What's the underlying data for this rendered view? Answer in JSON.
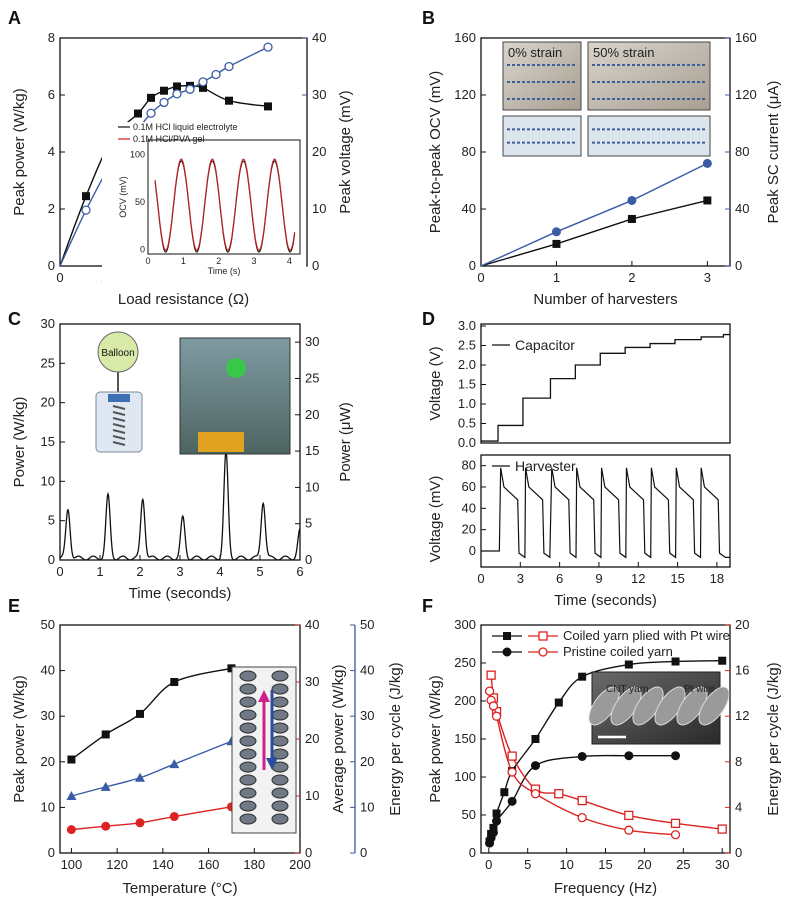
{
  "chart_data": [
    {
      "panel": "A",
      "type": "line",
      "xlabel": "Load resistance (Ω)",
      "ylabel": "Peak power (W/kg)",
      "y2label": "Peak voltage (mV)",
      "xlim": [
        0,
        950
      ],
      "ylim": [
        0,
        8
      ],
      "y2lim": [
        0,
        40
      ],
      "xticks": [
        0,
        200,
        400,
        600,
        800
      ],
      "yticks": [
        0,
        2,
        4,
        6,
        8
      ],
      "y2ticks": [
        0,
        10,
        20,
        30,
        40
      ],
      "series": [
        {
          "name": "Peak power",
          "axis": "left",
          "color": "#111111",
          "marker": "square",
          "x": [
            0,
            100,
            200,
            300,
            350,
            400,
            450,
            500,
            550,
            650,
            800
          ],
          "y": [
            0,
            2.45,
            4.45,
            5.35,
            5.9,
            6.15,
            6.3,
            6.32,
            6.25,
            5.8,
            5.6
          ]
        },
        {
          "name": "Peak voltage",
          "axis": "right",
          "color": "#3a5ba5",
          "marker": "circle-open",
          "x": [
            0,
            100,
            200,
            300,
            350,
            400,
            450,
            500,
            550,
            600,
            650,
            800
          ],
          "y": [
            0,
            9.8,
            18.2,
            24.0,
            26.8,
            28.7,
            30.2,
            31.0,
            32.3,
            33.6,
            35.0,
            38.4
          ]
        }
      ],
      "inset": {
        "xlabel": "Time (s)",
        "ylabel": "OCV (mV)",
        "xticks": [
          0,
          1,
          2,
          3,
          4
        ],
        "yticks": [
          0,
          50,
          100
        ],
        "legend": [
          "0.1M HCl liquid electrolyte",
          "0.1M HCl/PVA gel"
        ],
        "legend_colors": [
          "#111111",
          "#cc2222"
        ]
      }
    },
    {
      "panel": "B",
      "type": "line",
      "xlabel": "Number of harvesters",
      "ylabel": "Peak-to-peak OCV (mV)",
      "y2label": "Peak SC current (μA)",
      "xlim": [
        0,
        3.3
      ],
      "ylim": [
        0,
        160
      ],
      "y2lim": [
        0,
        160
      ],
      "xticks": [
        0,
        1,
        2,
        3
      ],
      "yticks": [
        0,
        40,
        80,
        120,
        160
      ],
      "y2ticks": [
        0,
        40,
        80,
        120,
        160
      ],
      "series": [
        {
          "name": "Peak-to-peak OCV",
          "axis": "left",
          "color": "#111111",
          "marker": "square",
          "x": [
            0,
            1,
            2,
            3
          ],
          "y": [
            0,
            15.5,
            33,
            46
          ]
        },
        {
          "name": "Peak SC current",
          "axis": "right",
          "color": "#3a5ba5",
          "marker": "circle",
          "x": [
            0,
            1,
            2,
            3
          ],
          "y": [
            0,
            24,
            46,
            72
          ]
        }
      ],
      "photo_labels": [
        "0% strain",
        "50% strain"
      ]
    },
    {
      "panel": "C",
      "type": "line",
      "xlabel": "Time (seconds)",
      "ylabel": "Power (W/kg)",
      "y2label": "Power (μW)",
      "xlim": [
        0,
        6
      ],
      "ylim": [
        0,
        30
      ],
      "y2lim": [
        0,
        32.5
      ],
      "xticks": [
        0,
        1,
        2,
        3,
        4,
        5,
        6
      ],
      "yticks": [
        0,
        5,
        10,
        15,
        20,
        25,
        30
      ],
      "y2ticks": [
        0,
        5,
        10,
        15,
        20,
        25,
        30
      ],
      "series": [
        {
          "name": "Power",
          "axis": "left",
          "color": "#111111",
          "peaks_t": [
            0.2,
            1.2,
            2.07,
            3.07,
            4.15,
            5.08,
            6.0
          ],
          "peaks_h": [
            6.2,
            7.9,
            7.6,
            5.1,
            13.4,
            7.2,
            3.5
          ]
        }
      ],
      "balloon_label": "Balloon"
    },
    {
      "panel": "D",
      "type": "line",
      "xlabel": "Time (seconds)",
      "top": {
        "ylabel": "Voltage (V)",
        "legend": "Capacitor",
        "ylim": [
          0,
          3.0
        ],
        "yticks": [
          0.0,
          0.5,
          1.0,
          1.5,
          2.0,
          2.5,
          3.0
        ],
        "ytick_labels": [
          "0.0",
          "0.5",
          "1.0",
          "1.5",
          "2.0",
          "2.5",
          "3.0"
        ],
        "step_t": [
          0,
          1.3,
          3.2,
          5.3,
          7.2,
          9.1,
          11.0,
          12.9,
          14.8,
          16.8,
          18.5
        ],
        "step_v": [
          0.05,
          0.45,
          1.15,
          1.65,
          2.0,
          2.3,
          2.45,
          2.55,
          2.65,
          2.72,
          2.78
        ]
      },
      "bottom": {
        "ylabel": "Voltage (mV)",
        "legend": "Harvester",
        "ylim": [
          -15,
          90
        ],
        "yticks": [
          0,
          20,
          40,
          60,
          80
        ],
        "ytick_labels": [
          "0",
          "20",
          "40",
          "60",
          "80"
        ],
        "pulse_t": [
          1.5,
          3.4,
          5.4,
          7.3,
          9.2,
          11.1,
          13.0,
          14.9,
          16.8
        ]
      },
      "xlim": [
        0,
        19
      ],
      "xticks": [
        0,
        3,
        6,
        9,
        12,
        15,
        18
      ]
    },
    {
      "panel": "E",
      "type": "line",
      "xlabel": "Temperature (°C)",
      "ylabel": "Peak power (W/kg)",
      "y2label": "Average power (W/kg)",
      "y3label": "Energy per cycle (J/kg)",
      "xlim": [
        95,
        200
      ],
      "ylim": [
        0,
        50
      ],
      "y2lim": [
        0,
        40
      ],
      "y3lim": [
        0,
        50
      ],
      "xticks": [
        100,
        120,
        140,
        160,
        180,
        200
      ],
      "yticks": [
        0,
        10,
        20,
        30,
        40,
        50
      ],
      "y2ticks": [
        0,
        10,
        20,
        30,
        40
      ],
      "y3ticks": [
        0,
        10,
        20,
        30,
        40,
        50
      ],
      "series": [
        {
          "name": "Peak power",
          "axis": "left",
          "color": "#111111",
          "marker": "square",
          "x": [
            100,
            115,
            130,
            145,
            170
          ],
          "y": [
            20.5,
            26,
            30.5,
            37.5,
            40.5
          ]
        },
        {
          "name": "Average power",
          "axis": "right",
          "color": "#dd2222",
          "marker": "circle",
          "x": [
            100,
            115,
            130,
            145,
            170
          ],
          "y": [
            4.1,
            4.7,
            5.3,
            6.4,
            8.1
          ]
        },
        {
          "name": "Energy per cycle",
          "axis": "right2",
          "color": "#3a5ba5",
          "marker": "triangle",
          "x": [
            100,
            115,
            130,
            145,
            170
          ],
          "y": [
            12.5,
            14.5,
            16.5,
            19.5,
            24.5
          ]
        }
      ]
    },
    {
      "panel": "F",
      "type": "line",
      "xlabel": "Frequency (Hz)",
      "ylabel": "Peak power (W/kg)",
      "y2label": "Energy per cycle (J/kg)",
      "xlim": [
        -1,
        31
      ],
      "ylim": [
        0,
        300
      ],
      "y2lim": [
        0,
        20
      ],
      "xticks": [
        0,
        5,
        10,
        15,
        20,
        25,
        30
      ],
      "yticks": [
        0,
        50,
        100,
        150,
        200,
        250,
        300
      ],
      "y2ticks": [
        0,
        4,
        8,
        12,
        16,
        20
      ],
      "series": [
        {
          "name": "Coiled yarn plied with Pt wire",
          "axis": "left",
          "color": "#111111",
          "marker": "square",
          "x": [
            0.1,
            0.3,
            0.6,
            1,
            2,
            3,
            6,
            9,
            12,
            18,
            24,
            30
          ],
          "y": [
            15,
            25,
            33,
            52,
            80,
            108,
            150,
            198,
            232,
            248,
            252,
            253
          ]
        },
        {
          "name": "Pristine coiled yarn",
          "axis": "left",
          "color": "#111111",
          "marker": "circle",
          "x": [
            0.1,
            0.3,
            0.6,
            1,
            3,
            6,
            12,
            18,
            24
          ],
          "y": [
            13,
            20,
            27,
            42,
            68,
            115,
            127,
            128,
            128
          ]
        },
        {
          "name": "Coiled yarn plied with Pt wire (energy)",
          "axis": "right",
          "color": "#dd2222",
          "marker": "square-open",
          "x": [
            0.3,
            0.6,
            1,
            3,
            6,
            9,
            12,
            18,
            24,
            30
          ],
          "y": [
            15.6,
            13.6,
            12.4,
            8.5,
            5.6,
            5.2,
            4.6,
            3.3,
            2.6,
            2.1
          ]
        },
        {
          "name": "Pristine coiled yarn (energy)",
          "axis": "right",
          "color": "#dd2222",
          "marker": "circle-open",
          "x": [
            0.1,
            0.3,
            0.6,
            1,
            3,
            6,
            12,
            18,
            24
          ],
          "y": [
            14.2,
            13.4,
            12.9,
            12.0,
            7.1,
            5.2,
            3.1,
            2.0,
            1.6
          ]
        }
      ],
      "legend": [
        "Coiled yarn plied with Pt wire",
        "Pristine coiled yarn"
      ],
      "inset_labels": [
        "CNT yarn",
        "Pt wire"
      ]
    }
  ]
}
